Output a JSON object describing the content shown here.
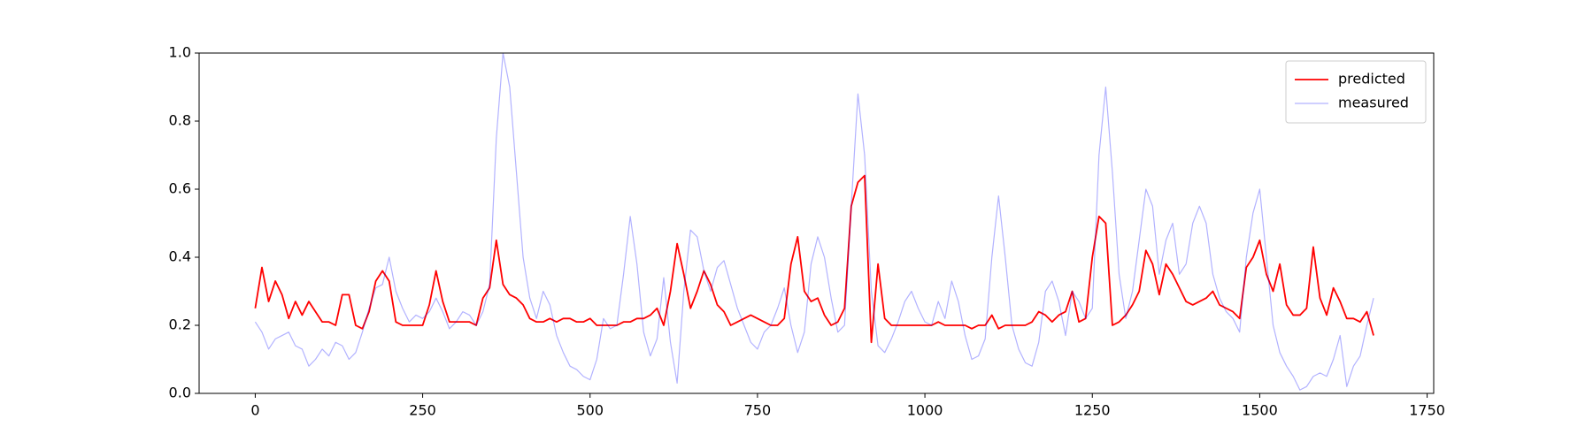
{
  "chart_data": {
    "type": "line",
    "x": [
      0,
      10,
      20,
      30,
      40,
      50,
      60,
      70,
      80,
      90,
      100,
      110,
      120,
      130,
      140,
      150,
      160,
      170,
      180,
      190,
      200,
      210,
      220,
      230,
      240,
      250,
      260,
      270,
      280,
      290,
      300,
      310,
      320,
      330,
      340,
      350,
      360,
      370,
      380,
      390,
      400,
      410,
      420,
      430,
      440,
      450,
      460,
      470,
      480,
      490,
      500,
      510,
      520,
      530,
      540,
      550,
      560,
      570,
      580,
      590,
      600,
      610,
      620,
      630,
      640,
      650,
      660,
      670,
      680,
      690,
      700,
      710,
      720,
      730,
      740,
      750,
      760,
      770,
      780,
      790,
      800,
      810,
      820,
      830,
      840,
      850,
      860,
      870,
      880,
      890,
      900,
      910,
      920,
      930,
      940,
      950,
      960,
      970,
      980,
      990,
      1000,
      1010,
      1020,
      1030,
      1040,
      1050,
      1060,
      1070,
      1080,
      1090,
      1100,
      1110,
      1120,
      1130,
      1140,
      1150,
      1160,
      1170,
      1180,
      1190,
      1200,
      1210,
      1220,
      1230,
      1240,
      1250,
      1260,
      1270,
      1280,
      1290,
      1300,
      1310,
      1320,
      1330,
      1340,
      1350,
      1360,
      1370,
      1380,
      1390,
      1400,
      1410,
      1420,
      1430,
      1440,
      1450,
      1460,
      1470,
      1480,
      1490,
      1500,
      1510,
      1520,
      1530,
      1540,
      1550,
      1560,
      1570,
      1580,
      1590,
      1600,
      1610,
      1620,
      1630,
      1640,
      1650,
      1660,
      1670
    ],
    "series": [
      {
        "name": "predicted",
        "color": "#ff0000",
        "alpha": 1,
        "width": 1.8,
        "values": [
          0.25,
          0.37,
          0.27,
          0.33,
          0.29,
          0.22,
          0.27,
          0.23,
          0.27,
          0.24,
          0.21,
          0.21,
          0.2,
          0.29,
          0.29,
          0.2,
          0.19,
          0.24,
          0.33,
          0.36,
          0.33,
          0.21,
          0.2,
          0.2,
          0.2,
          0.2,
          0.26,
          0.36,
          0.27,
          0.21,
          0.21,
          0.21,
          0.21,
          0.2,
          0.28,
          0.31,
          0.45,
          0.32,
          0.29,
          0.28,
          0.26,
          0.22,
          0.21,
          0.21,
          0.22,
          0.21,
          0.22,
          0.22,
          0.21,
          0.21,
          0.22,
          0.2,
          0.2,
          0.2,
          0.2,
          0.21,
          0.21,
          0.22,
          0.22,
          0.23,
          0.25,
          0.2,
          0.3,
          0.44,
          0.35,
          0.25,
          0.3,
          0.36,
          0.32,
          0.26,
          0.24,
          0.2,
          0.21,
          0.22,
          0.23,
          0.22,
          0.21,
          0.2,
          0.2,
          0.22,
          0.38,
          0.46,
          0.3,
          0.27,
          0.28,
          0.23,
          0.2,
          0.21,
          0.25,
          0.55,
          0.62,
          0.64,
          0.15,
          0.38,
          0.22,
          0.2,
          0.2,
          0.2,
          0.2,
          0.2,
          0.2,
          0.2,
          0.21,
          0.2,
          0.2,
          0.2,
          0.2,
          0.19,
          0.2,
          0.2,
          0.23,
          0.19,
          0.2,
          0.2,
          0.2,
          0.2,
          0.21,
          0.24,
          0.23,
          0.21,
          0.23,
          0.24,
          0.3,
          0.21,
          0.22,
          0.4,
          0.52,
          0.5,
          0.2,
          0.21,
          0.23,
          0.26,
          0.3,
          0.42,
          0.38,
          0.29,
          0.38,
          0.35,
          0.31,
          0.27,
          0.26,
          0.27,
          0.28,
          0.3,
          0.26,
          0.25,
          0.24,
          0.22,
          0.37,
          0.4,
          0.45,
          0.35,
          0.3,
          0.38,
          0.26,
          0.23,
          0.23,
          0.25,
          0.43,
          0.28,
          0.23,
          0.31,
          0.27,
          0.22,
          0.22,
          0.21,
          0.24,
          0.17
        ]
      },
      {
        "name": "measured",
        "color": "#0000ff",
        "alpha": 0.3,
        "width": 1.2,
        "values": [
          0.21,
          0.18,
          0.13,
          0.16,
          0.17,
          0.18,
          0.14,
          0.13,
          0.08,
          0.1,
          0.13,
          0.11,
          0.15,
          0.14,
          0.1,
          0.12,
          0.18,
          0.25,
          0.31,
          0.32,
          0.4,
          0.3,
          0.25,
          0.21,
          0.23,
          0.22,
          0.24,
          0.28,
          0.24,
          0.19,
          0.21,
          0.24,
          0.23,
          0.2,
          0.24,
          0.32,
          0.75,
          1.0,
          0.9,
          0.65,
          0.4,
          0.28,
          0.22,
          0.3,
          0.26,
          0.17,
          0.12,
          0.08,
          0.07,
          0.05,
          0.04,
          0.1,
          0.22,
          0.19,
          0.2,
          0.35,
          0.52,
          0.38,
          0.18,
          0.11,
          0.16,
          0.34,
          0.15,
          0.03,
          0.3,
          0.48,
          0.46,
          0.36,
          0.3,
          0.37,
          0.39,
          0.32,
          0.25,
          0.2,
          0.15,
          0.13,
          0.18,
          0.2,
          0.25,
          0.31,
          0.2,
          0.12,
          0.18,
          0.38,
          0.46,
          0.4,
          0.28,
          0.18,
          0.2,
          0.55,
          0.88,
          0.7,
          0.3,
          0.14,
          0.12,
          0.16,
          0.21,
          0.27,
          0.3,
          0.25,
          0.21,
          0.2,
          0.27,
          0.22,
          0.33,
          0.27,
          0.17,
          0.1,
          0.11,
          0.16,
          0.4,
          0.58,
          0.4,
          0.2,
          0.13,
          0.09,
          0.08,
          0.15,
          0.3,
          0.33,
          0.27,
          0.17,
          0.3,
          0.27,
          0.22,
          0.25,
          0.7,
          0.9,
          0.65,
          0.35,
          0.22,
          0.3,
          0.45,
          0.6,
          0.55,
          0.35,
          0.45,
          0.5,
          0.35,
          0.38,
          0.5,
          0.55,
          0.5,
          0.35,
          0.28,
          0.24,
          0.22,
          0.18,
          0.4,
          0.53,
          0.6,
          0.4,
          0.2,
          0.12,
          0.08,
          0.05,
          0.01,
          0.02,
          0.05,
          0.06,
          0.05,
          0.1,
          0.17,
          0.02,
          0.08,
          0.11,
          0.2,
          0.28
        ]
      }
    ],
    "xlim": [
      -83.8,
      1759.8
    ],
    "ylim": [
      0,
      1
    ],
    "xticks": [
      0,
      250,
      500,
      750,
      1000,
      1250,
      1500,
      1750
    ],
    "yticks": [
      {
        "value": 0,
        "label": "0.0"
      },
      {
        "value": 0.2,
        "label": "0.2"
      },
      {
        "value": 0.4,
        "label": "0.4"
      },
      {
        "value": 0.6,
        "label": "0.6"
      },
      {
        "value": 0.8,
        "label": "0.8"
      },
      {
        "value": 1,
        "label": "1.0"
      }
    ],
    "legend": "upper right"
  }
}
